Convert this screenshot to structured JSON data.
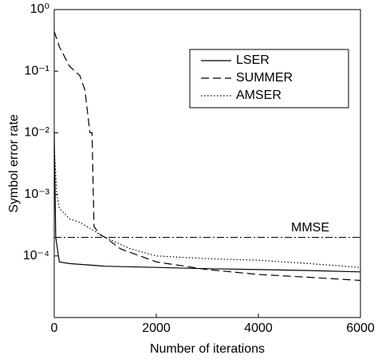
{
  "chart_data": {
    "type": "line",
    "xlabel": "Number of iterations",
    "ylabel": "Symbol error rate",
    "xlim": [
      0,
      6000
    ],
    "xticks": [
      0,
      2000,
      4000,
      6000
    ],
    "ylim": [
      1e-05,
      1
    ],
    "yscale": "log",
    "yticks": [
      {
        "value": 1,
        "label": "10⁰"
      },
      {
        "value": 0.1,
        "label": "10⁻¹"
      },
      {
        "value": 0.01,
        "label": "10⁻²"
      },
      {
        "value": 0.001,
        "label": "10⁻³"
      },
      {
        "value": 0.0001,
        "label": "10⁻⁴"
      }
    ],
    "legend": "upper right",
    "series": [
      {
        "name": "LSER",
        "color": "#000000",
        "dash": "solid",
        "x": [
          0,
          30,
          100,
          300,
          1000,
          2000,
          3000,
          4000,
          5000,
          6000
        ],
        "values": [
          0.01,
          0.0002,
          8e-05,
          7.5e-05,
          6.8e-05,
          6.5e-05,
          6.2e-05,
          6e-05,
          5.8e-05,
          5.5e-05
        ]
      },
      {
        "name": "SUMMER",
        "color": "#000000",
        "dash": "dashed",
        "x": [
          0,
          100,
          300,
          500,
          600,
          700,
          740,
          780,
          900,
          1000,
          1300,
          2000,
          3000,
          4000,
          5000,
          6000
        ],
        "values": [
          0.44,
          0.25,
          0.12,
          0.085,
          0.05,
          0.01,
          0.01,
          0.0003,
          0.00022,
          0.0002,
          0.00013,
          8e-05,
          6e-05,
          5e-05,
          4.5e-05,
          4e-05
        ]
      },
      {
        "name": "AMSER",
        "color": "#000000",
        "dash": "dotted",
        "x": [
          0,
          50,
          100,
          300,
          500,
          1000,
          1500,
          2000,
          3000,
          4000,
          5000,
          6000
        ],
        "values": [
          0.006,
          0.001,
          0.0006,
          0.0004,
          0.00035,
          0.0002,
          0.00013,
          0.0001,
          9e-05,
          8.5e-05,
          7.5e-05,
          6.5e-05
        ]
      }
    ],
    "reference_line": {
      "label": "MMSE",
      "value": 0.0002,
      "dash": "dashdot",
      "color": "#000000"
    }
  }
}
